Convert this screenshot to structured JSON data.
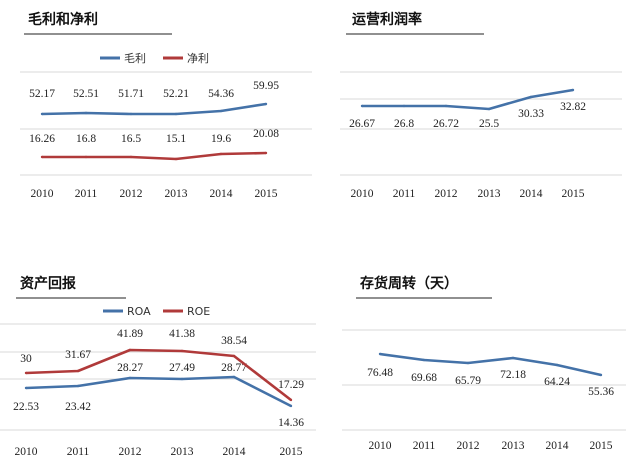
{
  "chart_data": [
    {
      "type": "line",
      "title": "毛利和净利",
      "categories": [
        "2010",
        "2011",
        "2012",
        "2013",
        "2014",
        "2015"
      ],
      "series": [
        {
          "name": "毛利",
          "values": [
            52.17,
            52.51,
            51.71,
            52.21,
            54.36,
            59.95
          ],
          "color": "#4472a8"
        },
        {
          "name": "净利",
          "values": [
            16.26,
            16.8,
            16.5,
            15.1,
            19.6,
            20.08
          ],
          "color": "#b03a3a"
        }
      ],
      "legend": "top-center",
      "grid": true
    },
    {
      "type": "line",
      "title": "运营利润率",
      "categories": [
        "2010",
        "2011",
        "2012",
        "2013",
        "2014",
        "2015"
      ],
      "series": [
        {
          "values": [
            26.67,
            26.8,
            26.72,
            25.5,
            30.33,
            32.82
          ],
          "color": "#4472a8"
        }
      ],
      "grid": true
    },
    {
      "type": "line",
      "title": "资产回报",
      "categories": [
        "2010",
        "2011",
        "2012",
        "2013",
        "2014",
        "2015"
      ],
      "series": [
        {
          "name": "ROA",
          "values": [
            22.53,
            23.42,
            28.27,
            27.49,
            28.77,
            14.36
          ],
          "color": "#4472a8"
        },
        {
          "name": "ROE",
          "values": [
            30,
            31.67,
            41.89,
            41.38,
            38.54,
            17.29
          ],
          "color": "#b03a3a"
        }
      ],
      "legend": "top-center",
      "grid": true
    },
    {
      "type": "line",
      "title": "存货周转（天）",
      "categories": [
        "2010",
        "2011",
        "2012",
        "2013",
        "2014",
        "2015"
      ],
      "series": [
        {
          "values": [
            76.48,
            69.68,
            65.79,
            72.18,
            64.24,
            55.36
          ],
          "color": "#4472a8"
        }
      ],
      "grid": true
    }
  ]
}
